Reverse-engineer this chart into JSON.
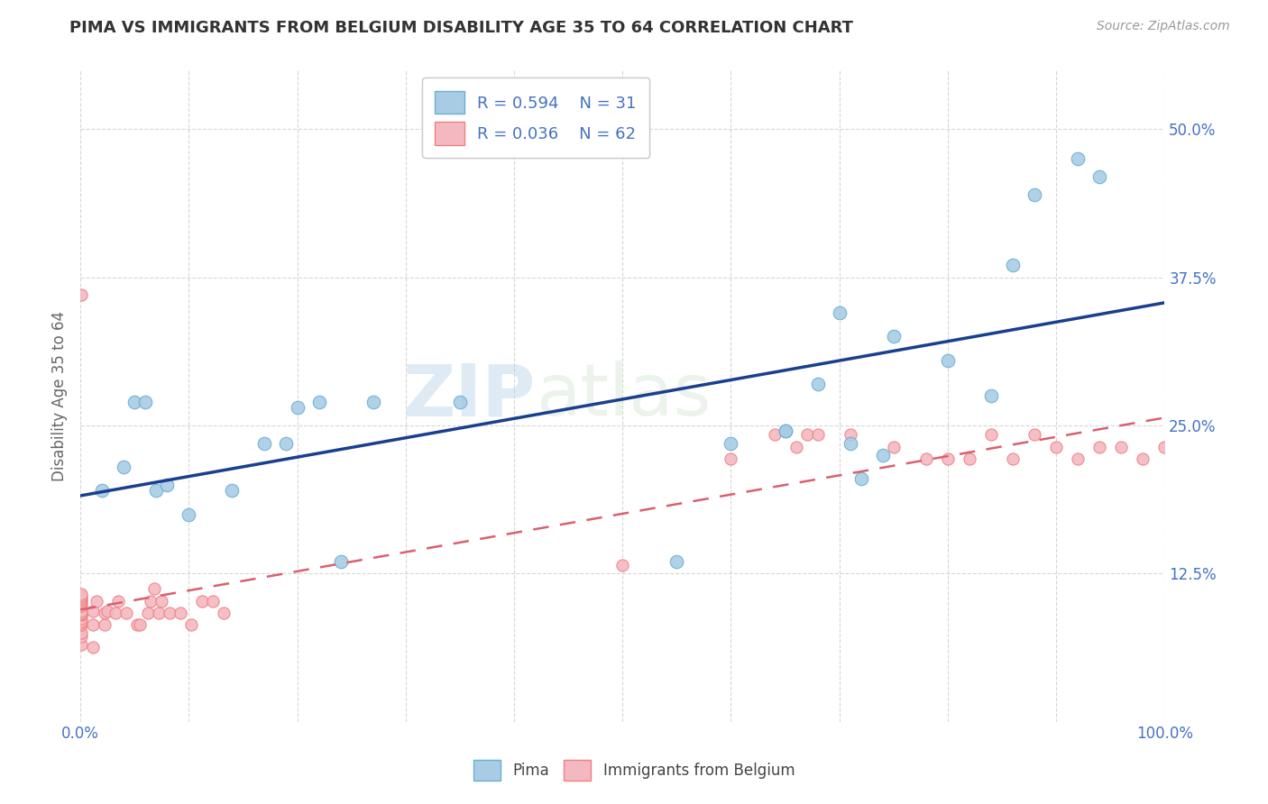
{
  "title": "PIMA VS IMMIGRANTS FROM BELGIUM DISABILITY AGE 35 TO 64 CORRELATION CHART",
  "source_text": "Source: ZipAtlas.com",
  "ylabel": "Disability Age 35 to 64",
  "xlim": [
    0.0,
    1.0
  ],
  "ylim": [
    0.0,
    0.55
  ],
  "x_ticks": [
    0.0,
    1.0
  ],
  "x_tick_labels": [
    "0.0%",
    "100.0%"
  ],
  "y_ticks": [
    0.125,
    0.25,
    0.375,
    0.5
  ],
  "y_tick_labels": [
    "12.5%",
    "25.0%",
    "37.5%",
    "50.0%"
  ],
  "legend_r1": "R = 0.594",
  "legend_n1": "N = 31",
  "legend_r2": "R = 0.036",
  "legend_n2": "N = 62",
  "pima_color": "#a8cce4",
  "pima_edge_color": "#6baed6",
  "belgium_color": "#f4b8c1",
  "belgium_edge_color": "#f08080",
  "line1_color": "#1a3f8f",
  "line2_color": "#d96070",
  "watermark_color": "#d0e8f5",
  "background_color": "#ffffff",
  "grid_color": "#cccccc",
  "title_color": "#333333",
  "axis_label_color": "#666666",
  "tick_label_color": "#4472c4",
  "pima_x": [
    0.02,
    0.04,
    0.05,
    0.06,
    0.07,
    0.08,
    0.1,
    0.14,
    0.17,
    0.19,
    0.2,
    0.22,
    0.24,
    0.27,
    0.35,
    0.55,
    0.6,
    0.65,
    0.65,
    0.68,
    0.7,
    0.71,
    0.72,
    0.74,
    0.75,
    0.8,
    0.84,
    0.86,
    0.88,
    0.92,
    0.94
  ],
  "pima_y": [
    0.195,
    0.215,
    0.27,
    0.27,
    0.195,
    0.2,
    0.175,
    0.195,
    0.235,
    0.235,
    0.265,
    0.27,
    0.135,
    0.27,
    0.27,
    0.135,
    0.235,
    0.245,
    0.245,
    0.285,
    0.345,
    0.235,
    0.205,
    0.225,
    0.325,
    0.305,
    0.275,
    0.385,
    0.445,
    0.475,
    0.46
  ],
  "belgium_x": [
    0.001,
    0.001,
    0.001,
    0.001,
    0.001,
    0.001,
    0.001,
    0.001,
    0.001,
    0.001,
    0.001,
    0.001,
    0.001,
    0.001,
    0.001,
    0.001,
    0.001,
    0.001,
    0.001,
    0.012,
    0.012,
    0.012,
    0.015,
    0.022,
    0.022,
    0.025,
    0.032,
    0.035,
    0.042,
    0.052,
    0.055,
    0.062,
    0.065,
    0.068,
    0.072,
    0.075,
    0.082,
    0.092,
    0.102,
    0.112,
    0.122,
    0.132,
    0.5,
    0.6,
    0.64,
    0.66,
    0.67,
    0.68,
    0.71,
    0.75,
    0.78,
    0.8,
    0.82,
    0.84,
    0.86,
    0.88,
    0.9,
    0.92,
    0.94,
    0.96,
    0.98,
    1.0
  ],
  "belgium_y": [
    0.065,
    0.072,
    0.075,
    0.082,
    0.083,
    0.085,
    0.087,
    0.09,
    0.091,
    0.092,
    0.093,
    0.098,
    0.1,
    0.102,
    0.103,
    0.105,
    0.106,
    0.108,
    0.36,
    0.063,
    0.082,
    0.093,
    0.102,
    0.082,
    0.092,
    0.093,
    0.092,
    0.102,
    0.092,
    0.082,
    0.082,
    0.092,
    0.102,
    0.112,
    0.092,
    0.102,
    0.092,
    0.092,
    0.082,
    0.102,
    0.102,
    0.092,
    0.132,
    0.222,
    0.242,
    0.232,
    0.242,
    0.242,
    0.242,
    0.232,
    0.222,
    0.222,
    0.222,
    0.242,
    0.222,
    0.242,
    0.232,
    0.222,
    0.232,
    0.232,
    0.222,
    0.232
  ]
}
